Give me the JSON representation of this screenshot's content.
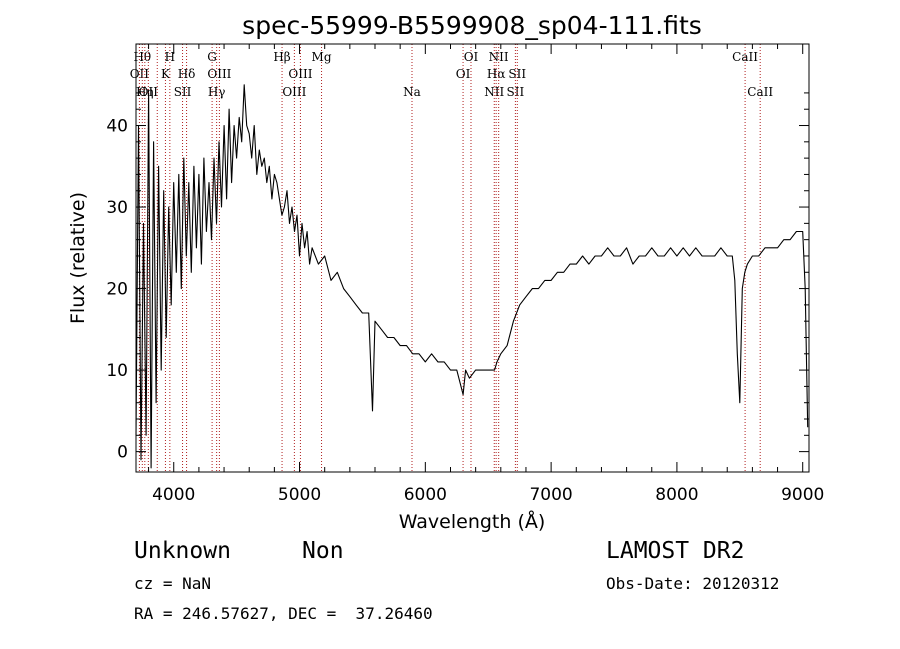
{
  "chart_data": {
    "type": "line",
    "title": "spec-55999-B5599908_sp04-111.fits",
    "xlabel": "Wavelength (Å)",
    "ylabel": "Flux (relative)",
    "xlim": [
      3700,
      9050
    ],
    "ylim": [
      -2.5,
      50
    ],
    "xticks": [
      4000,
      5000,
      6000,
      7000,
      8000,
      9000
    ],
    "yticks": [
      0,
      10,
      20,
      30,
      40
    ],
    "grid": false,
    "series": [
      {
        "color": "#000000",
        "x": [
          3700,
          3720,
          3740,
          3760,
          3780,
          3800,
          3820,
          3840,
          3860,
          3880,
          3900,
          3920,
          3940,
          3960,
          3980,
          4000,
          4020,
          4040,
          4060,
          4080,
          4100,
          4120,
          4140,
          4160,
          4180,
          4200,
          4220,
          4240,
          4260,
          4280,
          4300,
          4320,
          4340,
          4360,
          4380,
          4400,
          4420,
          4440,
          4460,
          4480,
          4500,
          4520,
          4540,
          4560,
          4580,
          4600,
          4620,
          4640,
          4660,
          4680,
          4700,
          4720,
          4740,
          4760,
          4780,
          4800,
          4820,
          4840,
          4860,
          4880,
          4900,
          4920,
          4940,
          4960,
          4980,
          5000,
          5020,
          5040,
          5060,
          5080,
          5100,
          5150,
          5200,
          5250,
          5300,
          5350,
          5400,
          5450,
          5500,
          5550,
          5580,
          5600,
          5650,
          5700,
          5750,
          5800,
          5850,
          5900,
          5950,
          6000,
          6050,
          6100,
          6150,
          6200,
          6250,
          6300,
          6320,
          6350,
          6400,
          6450,
          6500,
          6550,
          6570,
          6600,
          6650,
          6700,
          6750,
          6800,
          6850,
          6900,
          6950,
          7000,
          7050,
          7100,
          7150,
          7200,
          7250,
          7300,
          7350,
          7400,
          7450,
          7500,
          7550,
          7600,
          7650,
          7700,
          7750,
          7800,
          7850,
          7900,
          7950,
          8000,
          8050,
          8100,
          8150,
          8200,
          8250,
          8300,
          8350,
          8400,
          8440,
          8460,
          8480,
          8500,
          8520,
          8540,
          8560,
          8600,
          8650,
          8700,
          8750,
          8800,
          8850,
          8900,
          8950,
          9000,
          9020,
          9040
        ],
        "values": [
          2,
          40,
          -1,
          28,
          2,
          44,
          -2,
          38,
          6,
          35,
          10,
          32,
          14,
          30,
          18,
          33,
          22,
          34,
          20,
          36,
          24,
          33,
          22,
          35,
          25,
          34,
          23,
          36,
          27,
          33,
          26,
          36,
          28,
          38,
          30,
          40,
          31,
          42,
          33,
          40,
          36,
          41,
          38,
          45,
          40,
          39,
          36,
          40,
          34,
          37,
          35,
          36,
          33,
          35,
          31,
          34,
          33,
          31,
          29,
          30,
          32,
          28,
          30,
          27,
          29,
          24,
          28,
          25,
          27,
          23,
          25,
          23,
          24,
          21,
          22,
          20,
          19,
          18,
          17,
          17,
          5,
          16,
          15,
          14,
          14,
          13,
          13,
          12,
          12,
          11,
          12,
          11,
          11,
          10,
          10,
          7,
          10,
          9,
          10,
          10,
          10,
          10,
          11,
          12,
          13,
          16,
          18,
          19,
          20,
          20,
          21,
          21,
          22,
          22,
          23,
          23,
          24,
          23,
          24,
          24,
          25,
          24,
          24,
          25,
          23,
          24,
          24,
          25,
          24,
          24,
          25,
          24,
          25,
          24,
          25,
          24,
          24,
          24,
          25,
          24,
          24,
          21,
          12,
          6,
          20,
          22,
          23,
          24,
          24,
          25,
          25,
          25,
          26,
          26,
          27,
          27,
          20,
          3
        ]
      }
    ],
    "lines": [
      {
        "x": 3727,
        "label": "OII",
        "row": 2
      },
      {
        "x": 3750,
        "label": "Hθ",
        "row": 1
      },
      {
        "x": 3770,
        "label": "Hη",
        "row": 3
      },
      {
        "x": 3798,
        "label": "OII",
        "row": 3
      },
      {
        "x": 3869,
        "label": "",
        "row": 0
      },
      {
        "x": 3934,
        "label": "K",
        "row": 2
      },
      {
        "x": 3969,
        "label": "H",
        "row": 1
      },
      {
        "x": 4070,
        "label": "SII",
        "row": 3
      },
      {
        "x": 4102,
        "label": "Hδ",
        "row": 2
      },
      {
        "x": 4305,
        "label": "G",
        "row": 1
      },
      {
        "x": 4341,
        "label": "Hγ",
        "row": 3
      },
      {
        "x": 4363,
        "label": "OIII",
        "row": 2
      },
      {
        "x": 4861,
        "label": "Hβ",
        "row": 1
      },
      {
        "x": 4959,
        "label": "OIII",
        "row": 3
      },
      {
        "x": 5007,
        "label": "OIII",
        "row": 2
      },
      {
        "x": 5175,
        "label": "Mg",
        "row": 1
      },
      {
        "x": 5894,
        "label": "Na",
        "row": 3
      },
      {
        "x": 6300,
        "label": "OI",
        "row": 2
      },
      {
        "x": 6363,
        "label": "OI",
        "row": 1
      },
      {
        "x": 6548,
        "label": "NII",
        "row": 3
      },
      {
        "x": 6563,
        "label": "Hα",
        "row": 2
      },
      {
        "x": 6583,
        "label": "NII",
        "row": 1
      },
      {
        "x": 6716,
        "label": "SII",
        "row": 3
      },
      {
        "x": 6731,
        "label": "SII",
        "row": 2
      },
      {
        "x": 8542,
        "label": "CaII",
        "row": 1
      },
      {
        "x": 8662,
        "label": "CaII",
        "row": 3
      }
    ]
  },
  "info": {
    "class_label": "Unknown",
    "subclass_label": "Non",
    "survey": "LAMOST DR2",
    "cz": "cz = NaN",
    "obs_date": "Obs-Date: 20120312",
    "coords": "RA = 246.57627, DEC =  37.26460"
  }
}
